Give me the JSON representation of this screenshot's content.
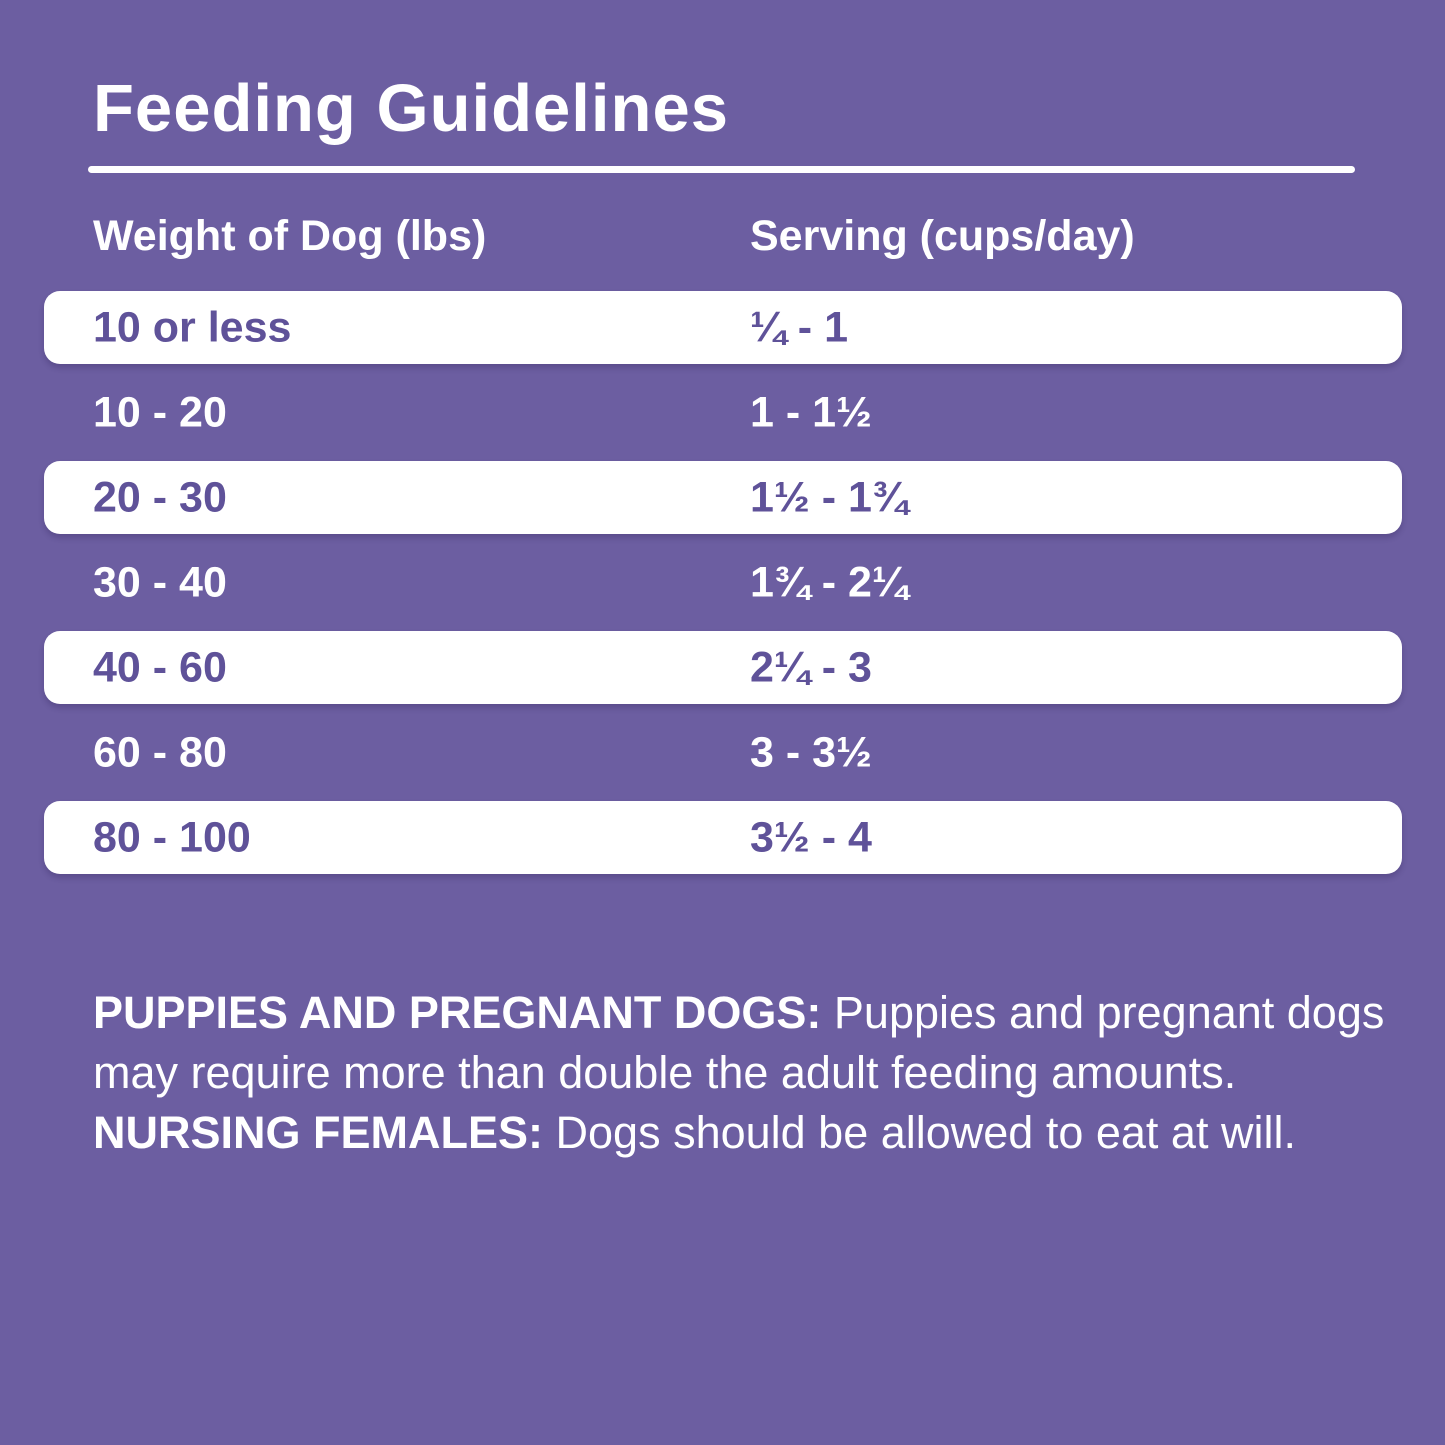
{
  "page": {
    "background_color": "#6C5EA1",
    "row_text_color": "#5F5299",
    "text_color": "#FFFFFF"
  },
  "title": "Feeding Guidelines",
  "table": {
    "columns": [
      "Weight of Dog (lbs)",
      "Serving (cups/day)"
    ],
    "rows": [
      {
        "weight": "10 or less",
        "serving": "¼ - 1"
      },
      {
        "weight": "10 - 20",
        "serving": "1 - 1½"
      },
      {
        "weight": "20 - 30",
        "serving": "1½ - 1¾"
      },
      {
        "weight": "30 - 40",
        "serving": "1¾ - 2¼"
      },
      {
        "weight": "40 - 60",
        "serving": "2¼ - 3"
      },
      {
        "weight": "60 - 80",
        "serving": "3 - 3½"
      },
      {
        "weight": "80 - 100",
        "serving": "3½ - 4"
      }
    ]
  },
  "notes": {
    "segments": [
      {
        "text": "PUPPIES AND PREGNANT DOGS: ",
        "bold": true
      },
      {
        "text": "Puppies and pregnant dogs may require more than double the adult feeding amounts. ",
        "bold": false
      },
      {
        "text": "NURSING FEMALES: ",
        "bold": true
      },
      {
        "text": "Dogs should be allowed to eat at will.",
        "bold": false
      }
    ]
  }
}
